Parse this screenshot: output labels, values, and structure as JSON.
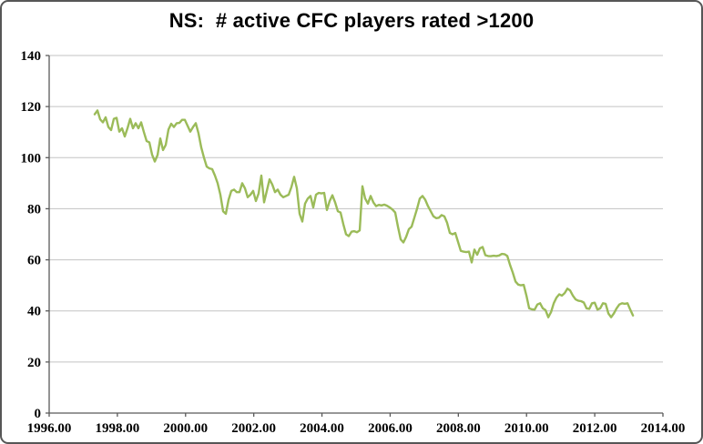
{
  "window": {
    "background": "#ffffff",
    "border_color": "#565656"
  },
  "chart_data": {
    "type": "line",
    "title": "NS:  # active CFC players rated >1200",
    "xlabel": "",
    "ylabel": "",
    "x_range": [
      1996,
      2014
    ],
    "y_range": [
      0,
      140
    ],
    "x_ticks": [
      "1996.00",
      "1998.00",
      "2000.00",
      "2002.00",
      "2004.00",
      "2006.00",
      "2008.00",
      "2010.00",
      "2012.00",
      "2014.00"
    ],
    "x_tick_values": [
      1996,
      1998,
      2000,
      2002,
      2004,
      2006,
      2008,
      2010,
      2012,
      2014
    ],
    "y_ticks": [
      "0",
      "20",
      "40",
      "60",
      "80",
      "100",
      "120",
      "140"
    ],
    "y_tick_values": [
      0,
      20,
      40,
      60,
      80,
      100,
      120,
      140
    ],
    "grid": "horizontal",
    "legend": "none",
    "colors": {
      "line": "#9BBB59",
      "gridline": "#C3C3C3",
      "axis": "#595959",
      "labels": "#000000",
      "title": "#000000"
    },
    "series": [
      {
        "name": "NS",
        "x_start": 1997.335,
        "x_step": 0.08013,
        "values": [
          117,
          118.5,
          115,
          113.8,
          115.8,
          112,
          110.8,
          115.2,
          115.6,
          110.2,
          111.5,
          108.3,
          111.5,
          115.2,
          111.5,
          113.5,
          111.5,
          113.8,
          110,
          106.5,
          106,
          101.2,
          98.5,
          101,
          107.5,
          103,
          105,
          111,
          113.3,
          112,
          113.5,
          113.6,
          114.8,
          114.8,
          112.5,
          110.2,
          112,
          113.5,
          109.5,
          104,
          100,
          96.5,
          95.8,
          95.5,
          93,
          90,
          85.5,
          79,
          78,
          83.5,
          87,
          87.5,
          86.5,
          86.5,
          90,
          88,
          84.5,
          85.5,
          87,
          83,
          86,
          93,
          82.5,
          87,
          91.5,
          89.5,
          86.5,
          87.5,
          85.5,
          84.5,
          85,
          85.5,
          88.5,
          92.5,
          88,
          78,
          75,
          82,
          84,
          85,
          80.5,
          85.5,
          86.2,
          86,
          86.2,
          79.5,
          83,
          85.3,
          82.5,
          79,
          78.5,
          74,
          70,
          69.3,
          71,
          71.2,
          70.8,
          71.5,
          88.8,
          84,
          82,
          85,
          82.5,
          81,
          81.5,
          81.3,
          81.6,
          81.2,
          80.5,
          79.7,
          78.5,
          73,
          68,
          66.8,
          69,
          72,
          73,
          76.5,
          80,
          84,
          85,
          83.5,
          81,
          79,
          77,
          76.3,
          76.5,
          77.5,
          77,
          74.5,
          70.5,
          70,
          70.5,
          67,
          63.5,
          63.2,
          63,
          63.2,
          59,
          64,
          62,
          64.5,
          65,
          61.8,
          61.5,
          61.4,
          61.6,
          61.5,
          61.7,
          62.3,
          62.2,
          61.5,
          58,
          55,
          51.5,
          50.3,
          50,
          50.2,
          46,
          41,
          40.6,
          40.5,
          42.5,
          43,
          41,
          40.3,
          37.5,
          39.5,
          43,
          45.2,
          46.5,
          46,
          47,
          48.7,
          48,
          46,
          44.5,
          44,
          43.8,
          43.3,
          41,
          40.8,
          43,
          43.2,
          40.5,
          41,
          43,
          42.8,
          39,
          37.5,
          39,
          41,
          42.5,
          43,
          42.8,
          43,
          40.5,
          38.2
        ]
      }
    ]
  }
}
